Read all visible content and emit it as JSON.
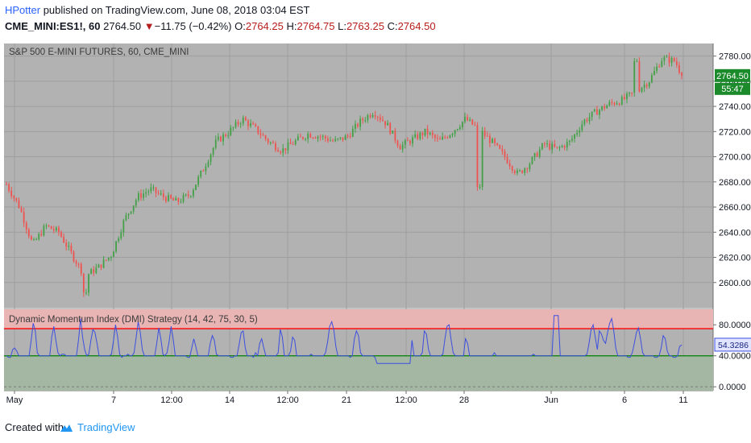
{
  "header": {
    "author": "HPotter",
    "published_text": " published on TradingView.com, June 08, 2018 03:04 EST",
    "symbol": "CME_MINI:ES1!, 60",
    "last": "2764.50",
    "arrow": "▼",
    "change": "−11.75 (−0.42%)",
    "o_label": "O:",
    "o_value": "2764.25",
    "h_label": "H:",
    "h_value": "2764.75",
    "l_label": "L:",
    "l_value": "2763.25",
    "c_label": "C:",
    "c_value": "2764.50"
  },
  "footer": {
    "created_with": "Created with",
    "brand": "TradingView",
    "logo_icon": "tradingview-cloud-icon"
  },
  "colors": {
    "panel_bg": "#b2b2b2",
    "up_candle": "#43a047",
    "down_candle": "#ef5350",
    "dmi_line": "#3d4fe0",
    "upper_level": "#ff0000",
    "lower_level": "#008000",
    "upper_band": "#e8b4b4",
    "lower_band": "#a3b7a3",
    "price_tag_bg": "#1b8a2a"
  },
  "chart_data": [
    {
      "type": "candlestick",
      "title": "S&P 500 E-MINI FUTURES, 60, CME_MINI",
      "ylim": [
        2580,
        2790
      ],
      "y_ticks": [
        "2780.00",
        "2760.00",
        "2740.00",
        "2720.00",
        "2700.00",
        "2680.00",
        "2660.00",
        "2640.00",
        "2620.00",
        "2600.00"
      ],
      "last_price_label": "2764.50",
      "countdown_label": "55:47",
      "x_tick_labels": [
        "May",
        "7",
        "12:00",
        "14",
        "12:00",
        "21",
        "12:00",
        "28",
        "Jun",
        "6",
        "11"
      ],
      "close_path": [
        [
          0,
          2678
        ],
        [
          2,
          2660
        ],
        [
          4,
          2630
        ],
        [
          6,
          2645
        ],
        [
          8,
          2640
        ],
        [
          10,
          2622
        ],
        [
          12,
          2605
        ],
        [
          14,
          2612
        ],
        [
          16,
          2622
        ],
        [
          18,
          2650
        ],
        [
          20,
          2668
        ],
        [
          22,
          2674
        ],
        [
          24,
          2668
        ],
        [
          26,
          2664
        ],
        [
          28,
          2670
        ],
        [
          30,
          2690
        ],
        [
          32,
          2712
        ],
        [
          34,
          2720
        ],
        [
          36,
          2730
        ],
        [
          38,
          2722
        ],
        [
          40,
          2712
        ],
        [
          42,
          2705
        ],
        [
          44,
          2712
        ],
        [
          46,
          2718
        ],
        [
          48,
          2716
        ],
        [
          50,
          2712
        ],
        [
          52,
          2716
        ],
        [
          54,
          2728
        ],
        [
          56,
          2736
        ],
        [
          58,
          2726
        ],
        [
          60,
          2708
        ],
        [
          62,
          2714
        ],
        [
          64,
          2720
        ],
        [
          66,
          2712
        ],
        [
          68,
          2720
        ],
        [
          70,
          2730
        ],
        [
          72,
          2722
        ],
        [
          74,
          2712
        ],
        [
          76,
          2700
        ],
        [
          78,
          2686
        ],
        [
          80,
          2696
        ],
        [
          82,
          2710
        ],
        [
          84,
          2706
        ],
        [
          86,
          2712
        ],
        [
          88,
          2728
        ],
        [
          90,
          2736
        ],
        [
          92,
          2742
        ],
        [
          94,
          2745
        ],
        [
          96,
          2752
        ],
        [
          98,
          2760
        ],
        [
          100,
          2778
        ],
        [
          102,
          2776
        ],
        [
          103,
          2764.5
        ]
      ],
      "outliers": [
        [
          12,
          2592
        ],
        [
          72,
          2676
        ],
        [
          96,
          2776
        ]
      ]
    },
    {
      "type": "line",
      "title": "Dynamic Momentum Index (DMI) Strategy (14, 42, 75, 30, 5)",
      "ylim": [
        -5,
        100
      ],
      "y_ticks": [
        "80.0000",
        "40.0000",
        "0.0000"
      ],
      "last_value_label": "54.3286",
      "upper_level": 75,
      "lower_level": 40,
      "dmi": [
        40,
        38,
        38,
        48,
        50,
        46,
        40,
        40,
        40,
        40,
        40,
        40,
        60,
        82,
        72,
        44,
        40,
        40,
        40,
        40,
        40,
        40,
        64,
        78,
        60,
        44,
        40,
        42,
        42,
        40,
        40,
        40,
        40,
        40,
        40,
        60,
        88,
        64,
        48,
        40,
        42,
        60,
        74,
        70,
        56,
        40,
        40,
        40,
        40,
        40,
        40,
        42,
        60,
        80,
        64,
        42,
        38,
        40,
        40,
        42,
        40,
        40,
        44,
        64,
        84,
        70,
        48,
        40,
        40,
        40,
        40,
        40,
        40,
        56,
        76,
        62,
        42,
        40,
        44,
        58,
        78,
        62,
        40,
        40,
        40,
        40,
        40,
        40,
        38,
        38,
        50,
        62,
        52,
        40,
        40,
        40,
        40,
        40,
        40,
        56,
        66,
        60,
        42,
        40,
        40,
        40,
        40,
        40,
        40,
        38,
        38,
        40,
        40,
        54,
        70,
        72,
        50,
        40,
        40,
        40,
        38,
        44,
        40,
        56,
        62,
        50,
        40,
        40,
        40,
        40,
        40,
        40,
        44,
        74,
        64,
        40,
        40,
        40,
        46,
        64,
        60,
        40,
        40,
        40,
        40,
        40,
        40,
        40,
        42,
        40,
        40,
        40,
        40,
        40,
        40,
        44,
        58,
        78,
        84,
        74,
        52,
        40,
        40,
        40,
        40,
        40,
        40,
        38,
        40,
        62,
        72,
        66,
        44,
        40,
        40,
        40,
        40,
        40,
        40,
        38,
        30,
        30,
        30,
        30,
        30,
        30,
        30,
        30,
        30,
        30,
        30,
        30,
        30,
        30,
        30,
        30,
        30,
        60,
        40,
        40,
        40,
        40,
        44,
        72,
        68,
        48,
        40,
        40,
        40,
        40,
        40,
        40,
        42,
        62,
        78,
        80,
        60,
        44,
        40,
        40,
        40,
        40,
        40,
        62,
        56,
        40,
        40,
        40,
        40,
        40,
        40,
        40,
        40,
        40,
        40,
        40,
        40,
        44,
        40,
        40,
        40,
        40,
        40,
        40,
        40,
        40,
        40,
        40,
        40,
        40,
        40,
        40,
        40,
        40,
        40,
        40,
        42,
        40,
        40,
        40,
        40,
        40,
        40,
        40,
        40,
        40,
        92,
        92,
        92,
        40,
        40,
        40,
        40,
        40,
        40,
        40,
        40,
        40,
        40,
        40,
        40,
        40,
        42,
        56,
        74,
        80,
        64,
        48,
        72,
        68,
        60,
        56,
        70,
        82,
        88,
        72,
        50,
        40,
        40,
        40,
        40,
        40,
        38,
        38,
        44,
        56,
        70,
        76,
        62,
        44,
        40,
        40,
        40,
        40,
        40,
        38,
        38,
        40,
        50,
        66,
        62,
        46,
        40,
        40,
        38,
        38,
        40,
        52,
        54
      ]
    }
  ]
}
